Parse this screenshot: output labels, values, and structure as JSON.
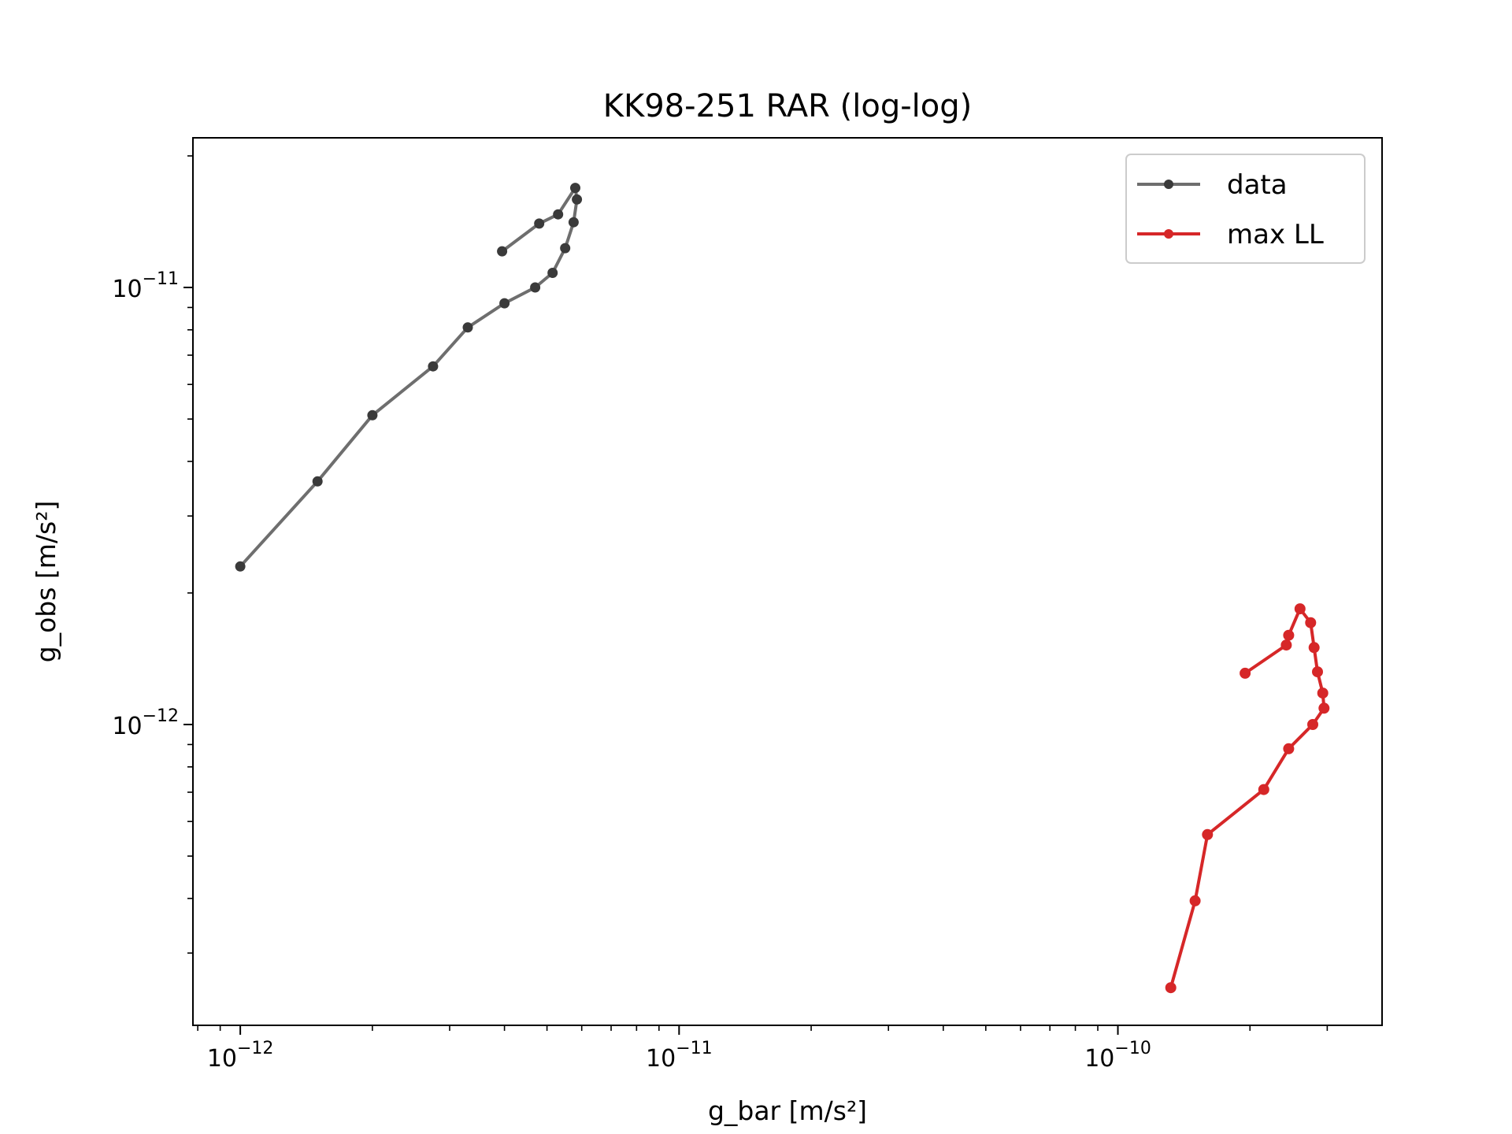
{
  "chart_data": {
    "type": "line",
    "title": "KK98-251 RAR (log-log)",
    "xlabel": "g_bar [m/s²]",
    "ylabel": "g_obs [m/s²]",
    "xscale": "log",
    "yscale": "log",
    "xlim": [
      7.8e-13,
      4e-10
    ],
    "ylim": [
      2.05e-13,
      2.2e-11
    ],
    "grid": false,
    "legend_position": "top-right",
    "x_ticks": [
      {
        "base": "10",
        "exp": "−12",
        "value": 1e-12
      },
      {
        "base": "10",
        "exp": "−11",
        "value": 1e-11
      },
      {
        "base": "10",
        "exp": "−10",
        "value": 1e-10
      }
    ],
    "y_ticks": [
      {
        "base": "10",
        "exp": "−12",
        "value": 1e-12
      },
      {
        "base": "10",
        "exp": "−11",
        "value": 1e-11
      }
    ],
    "series": [
      {
        "name": "data",
        "color": "#6e6e6e",
        "marker_color": "#3a3a3a",
        "points": [
          {
            "x": 1e-12,
            "y": 2.3e-12
          },
          {
            "x": 1.5e-12,
            "y": 3.6e-12
          },
          {
            "x": 2e-12,
            "y": 5.1e-12
          },
          {
            "x": 2.75e-12,
            "y": 6.6e-12
          },
          {
            "x": 3.3e-12,
            "y": 8.1e-12
          },
          {
            "x": 4e-12,
            "y": 9.2e-12
          },
          {
            "x": 4.7e-12,
            "y": 1e-11
          },
          {
            "x": 5.15e-12,
            "y": 1.08e-11
          },
          {
            "x": 5.5e-12,
            "y": 1.23e-11
          },
          {
            "x": 5.75e-12,
            "y": 1.41e-11
          },
          {
            "x": 5.85e-12,
            "y": 1.59e-11
          },
          {
            "x": 5.8e-12,
            "y": 1.69e-11
          },
          {
            "x": 5.3e-12,
            "y": 1.47e-11
          },
          {
            "x": 4.8e-12,
            "y": 1.4e-11
          },
          {
            "x": 3.95e-12,
            "y": 1.21e-11
          }
        ]
      },
      {
        "name": "max LL",
        "color": "#d62728",
        "marker_color": "#d62728",
        "points": [
          {
            "x": 1.32e-10,
            "y": 2.5e-13
          },
          {
            "x": 1.5e-10,
            "y": 3.95e-13
          },
          {
            "x": 1.6e-10,
            "y": 5.6e-13
          },
          {
            "x": 2.15e-10,
            "y": 7.1e-13
          },
          {
            "x": 2.45e-10,
            "y": 8.8e-13
          },
          {
            "x": 2.78e-10,
            "y": 1e-12
          },
          {
            "x": 2.95e-10,
            "y": 1.09e-12
          },
          {
            "x": 2.93e-10,
            "y": 1.18e-12
          },
          {
            "x": 2.85e-10,
            "y": 1.32e-12
          },
          {
            "x": 2.8e-10,
            "y": 1.5e-12
          },
          {
            "x": 2.75e-10,
            "y": 1.71e-12
          },
          {
            "x": 2.6e-10,
            "y": 1.84e-12
          },
          {
            "x": 2.45e-10,
            "y": 1.6e-12
          },
          {
            "x": 2.42e-10,
            "y": 1.52e-12
          },
          {
            "x": 1.95e-10,
            "y": 1.31e-12
          }
        ]
      }
    ]
  }
}
